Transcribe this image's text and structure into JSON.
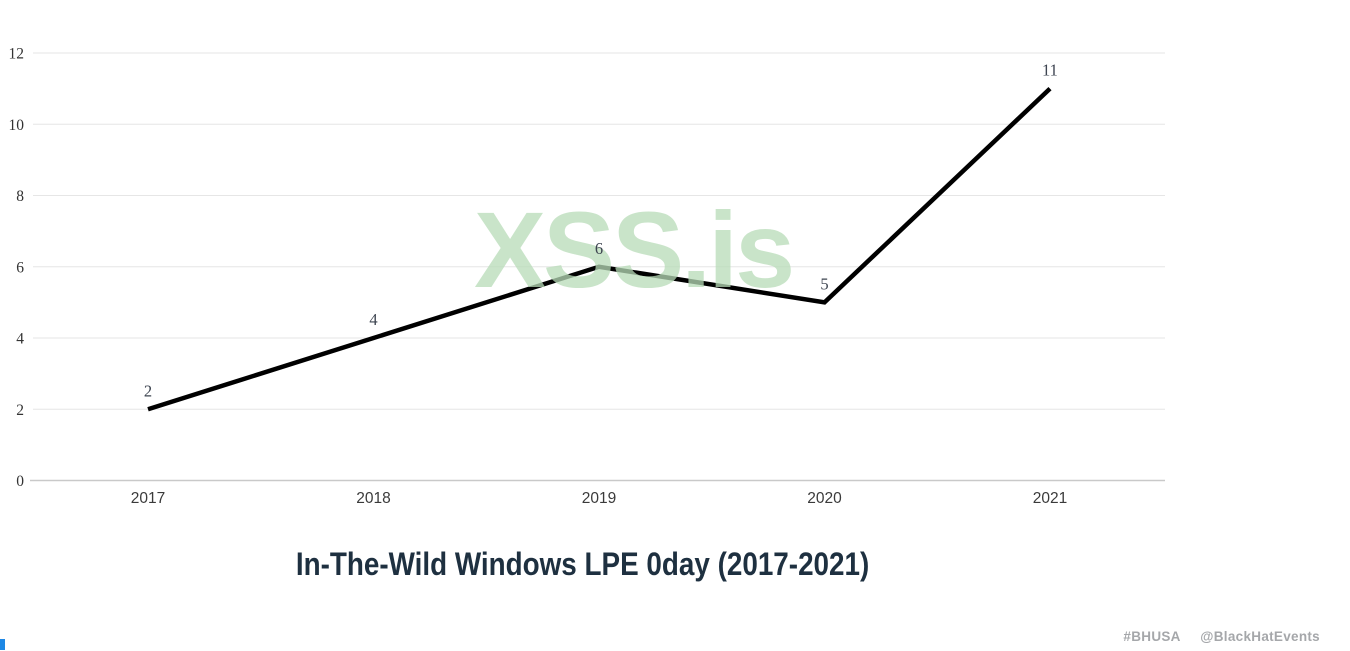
{
  "chart_data": {
    "type": "line",
    "title": "In-The-Wild Windows LPE 0day (2017-2021)",
    "categories": [
      "2017",
      "2018",
      "2019",
      "2020",
      "2021"
    ],
    "values": [
      2,
      4,
      6,
      5,
      11
    ],
    "point_labels": [
      "2",
      "4",
      "6",
      "5",
      "11"
    ],
    "yticks": [
      0,
      2,
      4,
      6,
      8,
      10,
      12
    ],
    "ylim": [
      0,
      12
    ],
    "xlabel": "",
    "ylabel": "",
    "grid": true,
    "legend": "none",
    "line_color": "#000000",
    "point_label_color": "#3d4450",
    "ytick_color": "#333333",
    "xtick_color": "#3a3a3a",
    "gridline_color": "#e6e6e6",
    "baseline_color": "#c9c9c9"
  },
  "title_color": "#1e3040",
  "watermark": {
    "text": "XSS.is",
    "color": "#b8dcb8"
  },
  "footer": {
    "hashtag": "#BHUSA",
    "handle": "@BlackHatEvents",
    "color": "#a5a7aa"
  },
  "decorations": {
    "corner_mark_color": "#1e88e5"
  }
}
